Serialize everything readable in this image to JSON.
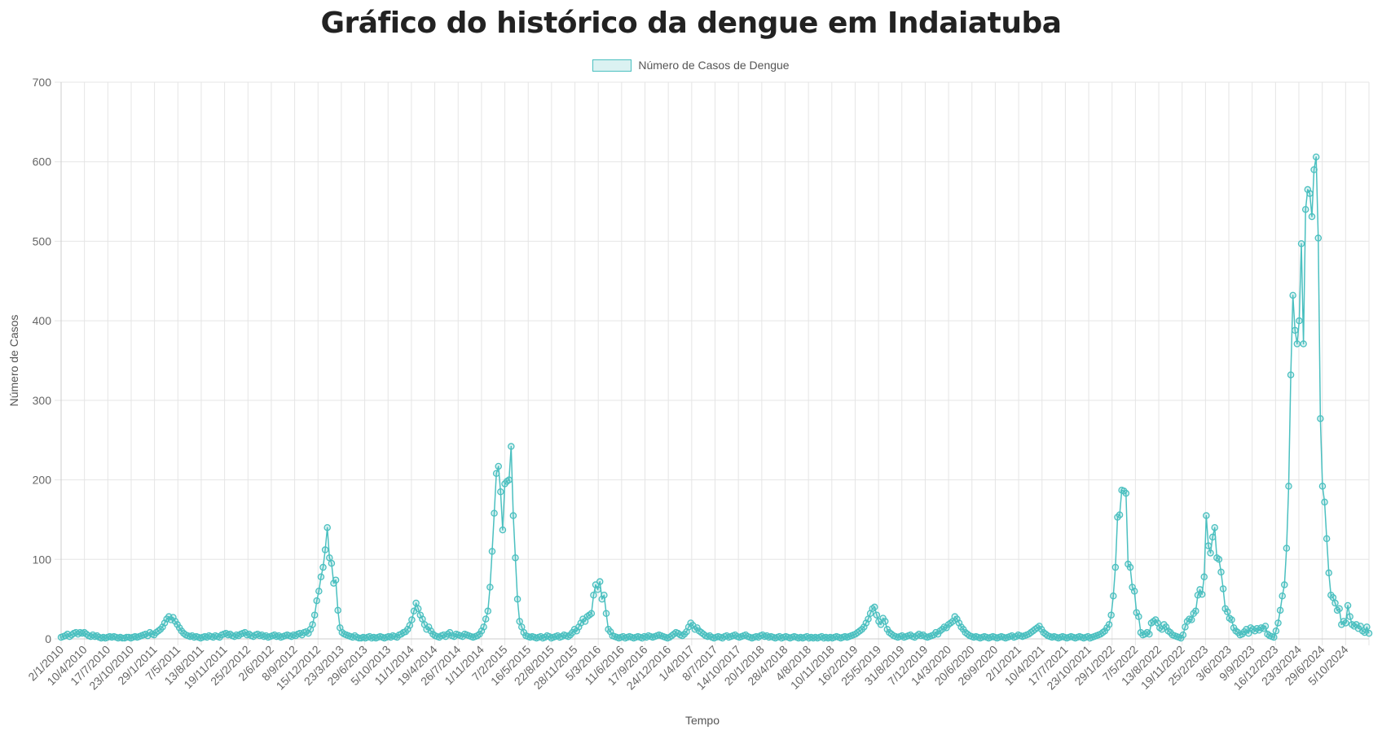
{
  "chart_data": {
    "type": "line",
    "title": "Gráfico do histórico da dengue em Indaiatuba",
    "xlabel": "Tempo",
    "ylabel": "Número de Casos",
    "ylim": [
      0,
      700
    ],
    "yticks": [
      0,
      100,
      200,
      300,
      400,
      500,
      600,
      700
    ],
    "legend": "top-center",
    "grid": true,
    "colors": {
      "line": "#4bc0c0",
      "fill": "rgba(75,192,192,0.2)",
      "grid": "#e5e5e5"
    },
    "x_tick_labels": [
      "2/1/2010",
      "10/4/2010",
      "17/7/2010",
      "23/10/2010",
      "29/1/2011",
      "7/5/2011",
      "13/8/2011",
      "19/11/2011",
      "25/2/2012",
      "2/6/2012",
      "8/9/2012",
      "15/12/2012",
      "23/3/2013",
      "29/6/2013",
      "5/10/2013",
      "11/1/2014",
      "19/4/2014",
      "26/7/2014",
      "1/11/2014",
      "7/2/2015",
      "16/5/2015",
      "22/8/2015",
      "28/11/2015",
      "5/3/2016",
      "11/6/2016",
      "17/9/2016",
      "24/12/2016",
      "1/4/2017",
      "8/7/2017",
      "14/10/2017",
      "20/1/2018",
      "28/4/2018",
      "4/8/2018",
      "10/11/2018",
      "16/2/2019",
      "25/5/2019",
      "31/8/2019",
      "7/12/2019",
      "14/3/2020",
      "20/6/2020",
      "26/9/2020",
      "2/1/2021",
      "10/4/2021",
      "17/7/2021",
      "23/10/2021",
      "29/1/2022",
      "7/5/2022",
      "13/8/2022",
      "19/11/2022",
      "25/2/2023",
      "3/6/2023",
      "9/9/2023",
      "16/12/2023",
      "23/3/2024",
      "29/6/2024",
      "5/10/2024"
    ],
    "series": [
      {
        "name": "Número de Casos de Dengue",
        "values": [
          2,
          3,
          4,
          6,
          3,
          5,
          7,
          8,
          6,
          8,
          7,
          8,
          6,
          4,
          3,
          5,
          3,
          4,
          2,
          1,
          2,
          1,
          2,
          3,
          2,
          3,
          2,
          1,
          2,
          1,
          1,
          2,
          2,
          1,
          2,
          3,
          2,
          3,
          4,
          5,
          6,
          4,
          8,
          6,
          5,
          8,
          10,
          12,
          15,
          20,
          25,
          28,
          24,
          27,
          22,
          18,
          14,
          10,
          7,
          5,
          4,
          3,
          4,
          2,
          3,
          2,
          1,
          2,
          3,
          2,
          4,
          3,
          2,
          4,
          3,
          2,
          5,
          6,
          7,
          5,
          6,
          4,
          3,
          5,
          4,
          6,
          7,
          8,
          5,
          6,
          4,
          3,
          5,
          6,
          4,
          5,
          3,
          4,
          2,
          3,
          4,
          5,
          3,
          4,
          2,
          3,
          4,
          5,
          4,
          3,
          5,
          4,
          6,
          7,
          5,
          8,
          9,
          7,
          12,
          18,
          30,
          48,
          60,
          78,
          90,
          112,
          140,
          102,
          95,
          70,
          74,
          36,
          14,
          8,
          6,
          5,
          4,
          3,
          2,
          4,
          2,
          1,
          1,
          2,
          1,
          2,
          3,
          1,
          2,
          1,
          2,
          3,
          2,
          1,
          2,
          3,
          2,
          4,
          3,
          2,
          5,
          6,
          8,
          9,
          12,
          17,
          24,
          35,
          45,
          38,
          30,
          25,
          18,
          12,
          15,
          10,
          6,
          4,
          3,
          2,
          4,
          5,
          3,
          6,
          8,
          4,
          3,
          6,
          5,
          4,
          3,
          6,
          5,
          4,
          3,
          2,
          3,
          4,
          6,
          10,
          15,
          25,
          35,
          65,
          110,
          158,
          208,
          217,
          185,
          137,
          195,
          198,
          200,
          242,
          155,
          102,
          50,
          22,
          15,
          8,
          4,
          3,
          2,
          3,
          2,
          1,
          2,
          3,
          1,
          2,
          4,
          3,
          1,
          2,
          3,
          4,
          2,
          3,
          5,
          4,
          3,
          5,
          8,
          12,
          10,
          15,
          20,
          25,
          22,
          28,
          30,
          32,
          55,
          68,
          62,
          72,
          50,
          55,
          32,
          12,
          9,
          4,
          3,
          2,
          1,
          2,
          3,
          1,
          2,
          3,
          2,
          1,
          2,
          3,
          2,
          1,
          3,
          2,
          4,
          3,
          2,
          3,
          4,
          5,
          4,
          3,
          2,
          1,
          2,
          4,
          6,
          8,
          7,
          5,
          4,
          6,
          9,
          15,
          20,
          17,
          12,
          14,
          10,
          8,
          6,
          4,
          3,
          4,
          2,
          1,
          2,
          3,
          2,
          1,
          3,
          4,
          2,
          3,
          4,
          5,
          3,
          2,
          3,
          4,
          5,
          3,
          2,
          1,
          2,
          3,
          2,
          4,
          5,
          3,
          4,
          2,
          3,
          2,
          1,
          2,
          3,
          1,
          2,
          3,
          2,
          1,
          2,
          3,
          2,
          1,
          2,
          1,
          2,
          3,
          1,
          2,
          1,
          2,
          1,
          2,
          3,
          1,
          2,
          1,
          2,
          1,
          2,
          3,
          2,
          1,
          2,
          3,
          2,
          3,
          4,
          5,
          6,
          8,
          10,
          12,
          15,
          20,
          25,
          32,
          38,
          40,
          30,
          22,
          18,
          26,
          22,
          12,
          8,
          6,
          4,
          3,
          2,
          3,
          4,
          2,
          3,
          4,
          5,
          3,
          2,
          4,
          6,
          4,
          5,
          3,
          2,
          3,
          4,
          5,
          8,
          6,
          10,
          12,
          15,
          14,
          18,
          20,
          22,
          28,
          25,
          20,
          15,
          12,
          8,
          6,
          4,
          3,
          2,
          3,
          2,
          1,
          2,
          3,
          2,
          1,
          2,
          3,
          2,
          1,
          2,
          3,
          2,
          1,
          2,
          3,
          4,
          2,
          3,
          5,
          4,
          3,
          4,
          5,
          6,
          8,
          10,
          12,
          14,
          16,
          12,
          8,
          6,
          4,
          3,
          2,
          3,
          2,
          1,
          2,
          3,
          2,
          1,
          2,
          3,
          2,
          1,
          2,
          3,
          2,
          1,
          2,
          3,
          1,
          2,
          3,
          4,
          5,
          6,
          8,
          10,
          14,
          18,
          30,
          54,
          90,
          153,
          156,
          187,
          186,
          183,
          94,
          90,
          65,
          60,
          33,
          28,
          8,
          5,
          6,
          8,
          6,
          20,
          22,
          24,
          20,
          14,
          12,
          18,
          15,
          10,
          8,
          5,
          4,
          3,
          2,
          1,
          5,
          15,
          22,
          25,
          24,
          32,
          35,
          55,
          62,
          56,
          78,
          155,
          117,
          108,
          128,
          140,
          102,
          100,
          84,
          63,
          38,
          34,
          26,
          24,
          14,
          10,
          8,
          5,
          6,
          9,
          12,
          7,
          14,
          12,
          10,
          13,
          11,
          14,
          13,
          16,
          6,
          4,
          3,
          2,
          10,
          20,
          36,
          54,
          68,
          114,
          192,
          332,
          432,
          388,
          371,
          400,
          497,
          371,
          540,
          565,
          560,
          531,
          590,
          606,
          504,
          277,
          192,
          172,
          126,
          83,
          55,
          52,
          45,
          36,
          38,
          18,
          22,
          20,
          42,
          28,
          18,
          16,
          18,
          13,
          16,
          10,
          8,
          15,
          7
        ]
      }
    ]
  }
}
